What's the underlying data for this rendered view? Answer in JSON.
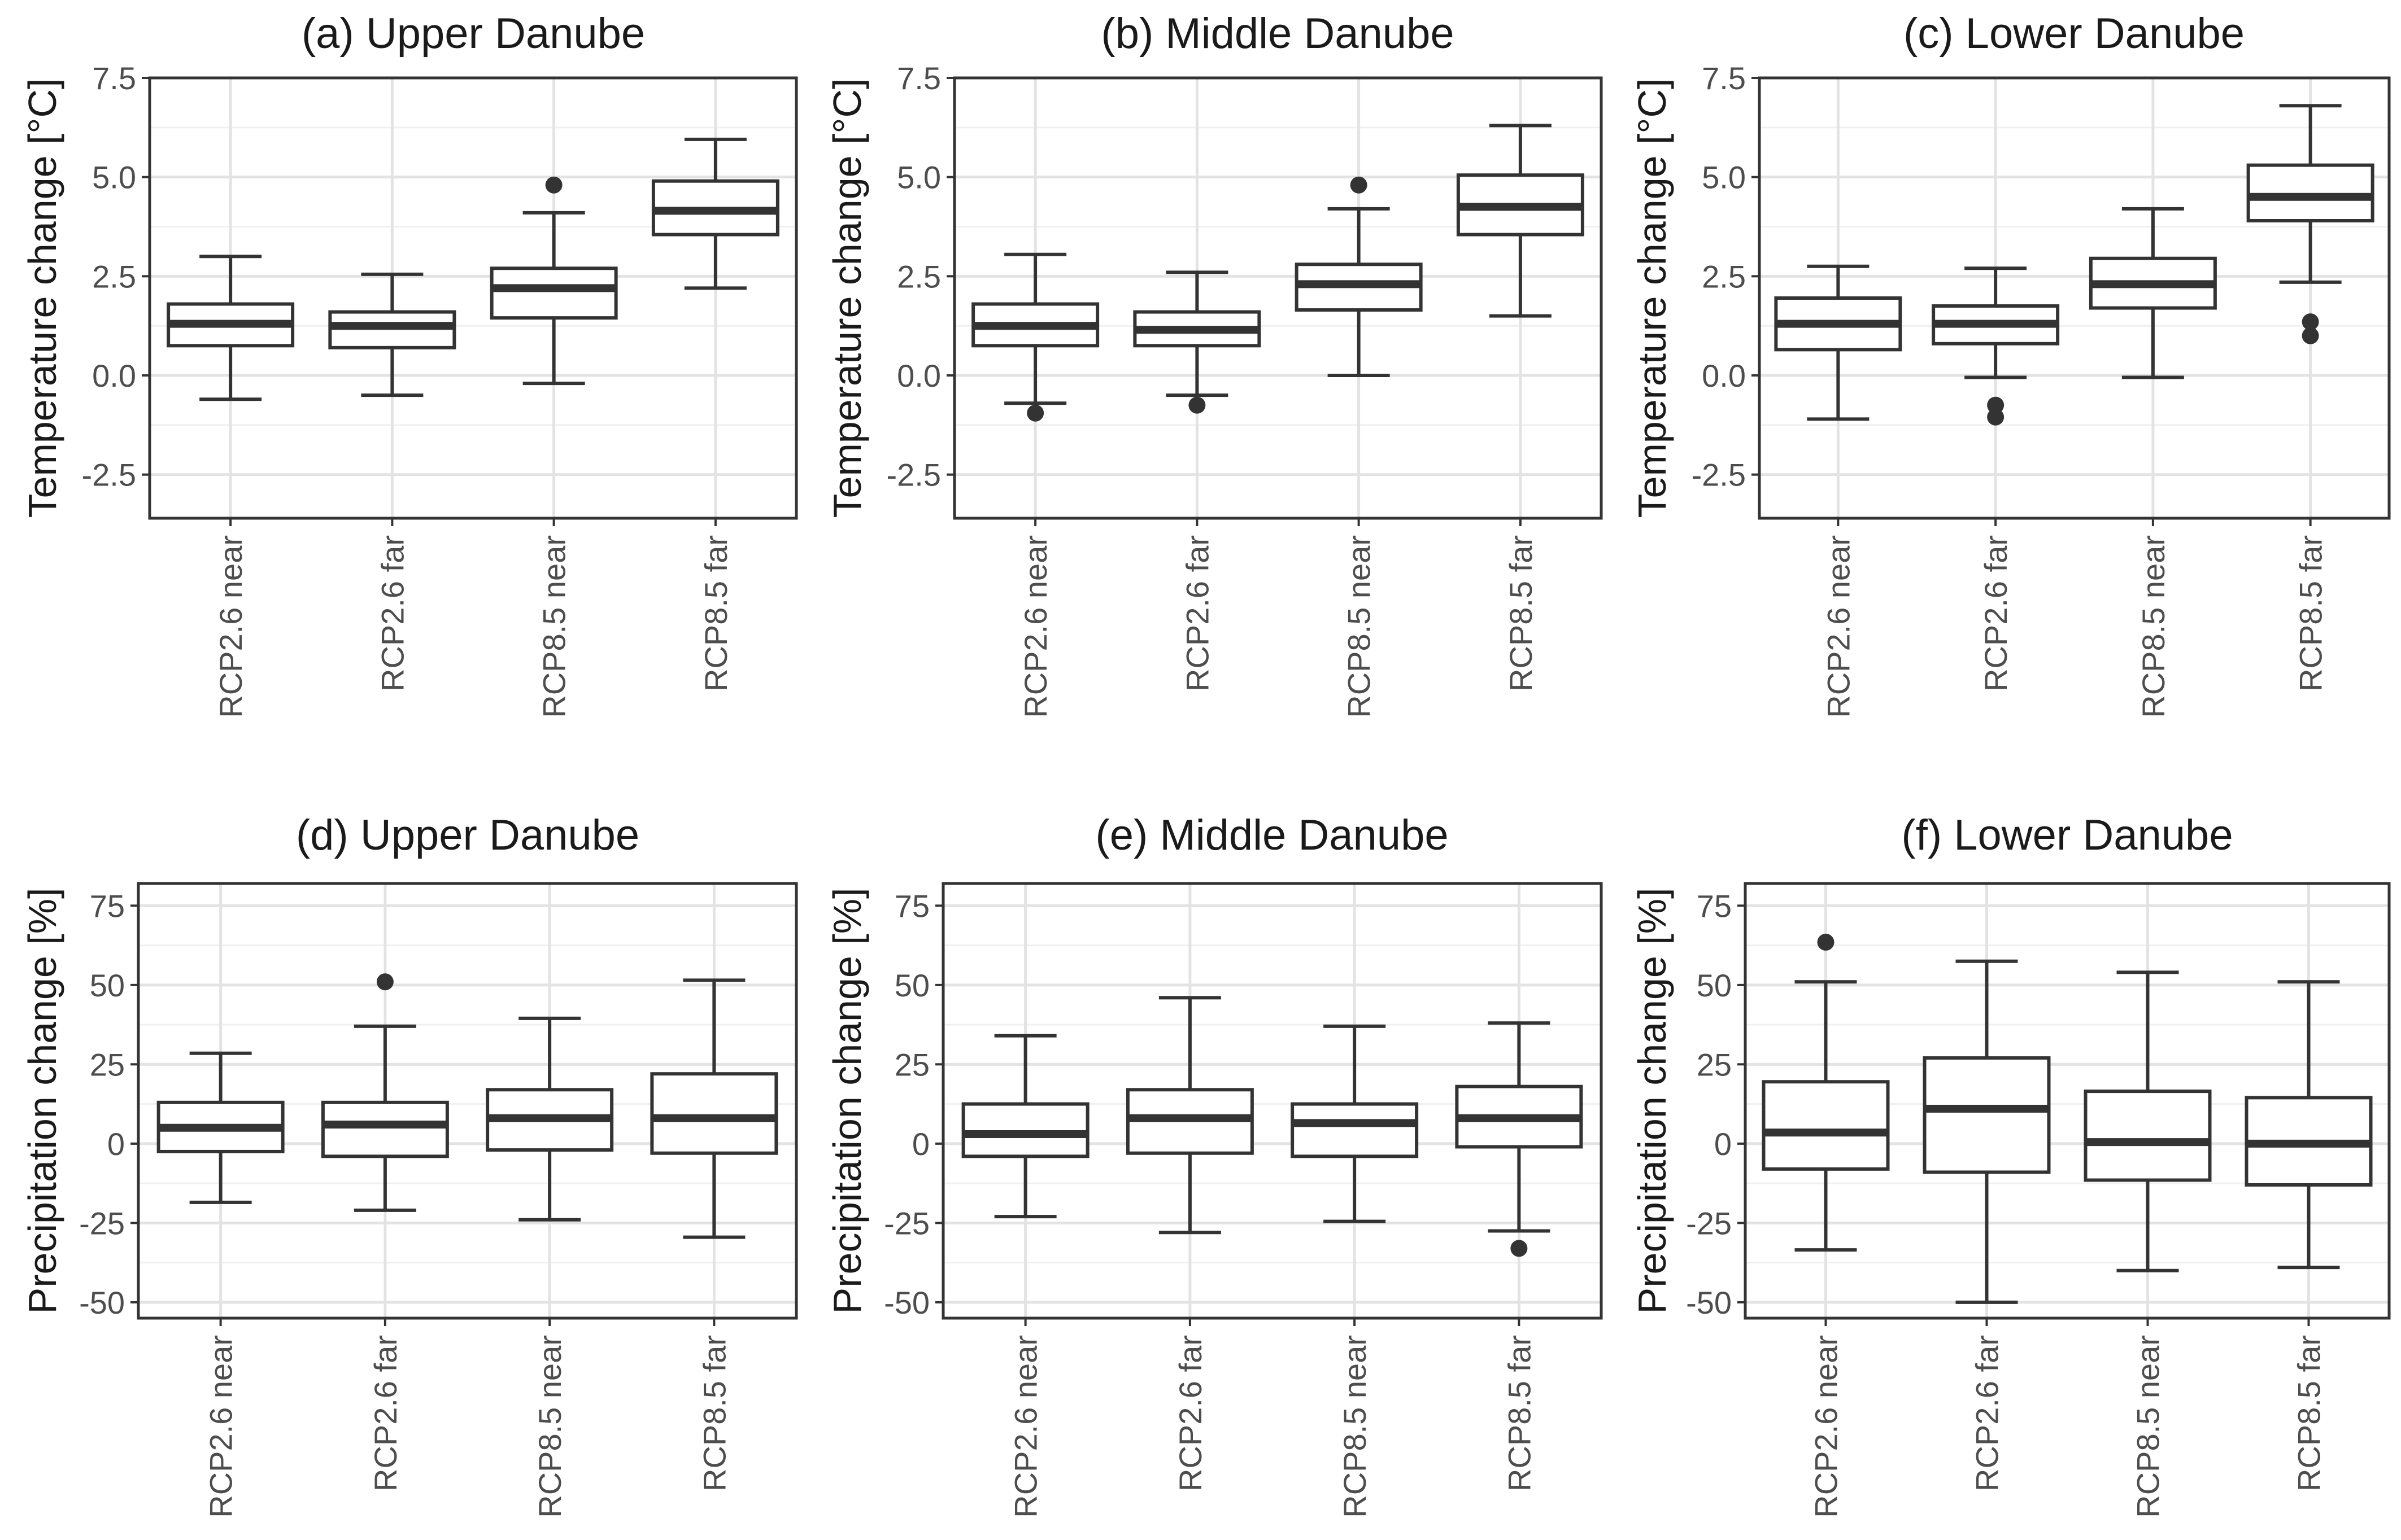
{
  "chart_data": [
    {
      "id": "a",
      "type": "box",
      "title": "(a) Upper Danube",
      "ylabel": "Temperature change [°C]",
      "ylim": [
        -3.6,
        7.5
      ],
      "yticks": [
        -2.5,
        0.0,
        2.5,
        5.0,
        7.5
      ],
      "ytick_labels": [
        "-2.5",
        "0.0",
        "2.5",
        "5.0",
        "7.5"
      ],
      "categories": [
        "RCP2.6 near",
        "RCP2.6 far",
        "RCP8.5 near",
        "RCP8.5 far"
      ],
      "boxes": [
        {
          "whisker_low": -0.6,
          "q1": 0.75,
          "median": 1.3,
          "q3": 1.8,
          "whisker_high": 3.0,
          "outliers": []
        },
        {
          "whisker_low": -0.5,
          "q1": 0.7,
          "median": 1.25,
          "q3": 1.6,
          "whisker_high": 2.55,
          "outliers": []
        },
        {
          "whisker_low": -0.2,
          "q1": 1.45,
          "median": 2.2,
          "q3": 2.7,
          "whisker_high": 4.1,
          "outliers": [
            4.8
          ]
        },
        {
          "whisker_low": 2.2,
          "q1": 3.55,
          "median": 4.15,
          "q3": 4.9,
          "whisker_high": 5.95,
          "outliers": []
        }
      ]
    },
    {
      "id": "b",
      "type": "box",
      "title": "(b) Middle Danube",
      "ylabel": "Temperature change [°C]",
      "ylim": [
        -3.6,
        7.5
      ],
      "yticks": [
        -2.5,
        0.0,
        2.5,
        5.0,
        7.5
      ],
      "ytick_labels": [
        "-2.5",
        "0.0",
        "2.5",
        "5.0",
        "7.5"
      ],
      "categories": [
        "RCP2.6 near",
        "RCP2.6 far",
        "RCP8.5 near",
        "RCP8.5 far"
      ],
      "boxes": [
        {
          "whisker_low": -0.7,
          "q1": 0.75,
          "median": 1.25,
          "q3": 1.8,
          "whisker_high": 3.05,
          "outliers": [
            -0.95
          ]
        },
        {
          "whisker_low": -0.5,
          "q1": 0.75,
          "median": 1.15,
          "q3": 1.6,
          "whisker_high": 2.6,
          "outliers": [
            -0.75
          ]
        },
        {
          "whisker_low": 0.0,
          "q1": 1.65,
          "median": 2.3,
          "q3": 2.8,
          "whisker_high": 4.2,
          "outliers": [
            4.8
          ]
        },
        {
          "whisker_low": 1.5,
          "q1": 3.55,
          "median": 4.25,
          "q3": 5.05,
          "whisker_high": 6.3,
          "outliers": []
        }
      ]
    },
    {
      "id": "c",
      "type": "box",
      "title": "(c) Lower Danube",
      "ylabel": "Temperature change [°C]",
      "ylim": [
        -3.6,
        7.5
      ],
      "yticks": [
        -2.5,
        0.0,
        2.5,
        5.0,
        7.5
      ],
      "ytick_labels": [
        "-2.5",
        "0.0",
        "2.5",
        "5.0",
        "7.5"
      ],
      "categories": [
        "RCP2.6 near",
        "RCP2.6 far",
        "RCP8.5 near",
        "RCP8.5 far"
      ],
      "boxes": [
        {
          "whisker_low": -1.1,
          "q1": 0.65,
          "median": 1.3,
          "q3": 1.95,
          "whisker_high": 2.75,
          "outliers": []
        },
        {
          "whisker_low": -0.05,
          "q1": 0.8,
          "median": 1.3,
          "q3": 1.75,
          "whisker_high": 2.7,
          "outliers": [
            -0.75,
            -1.05
          ]
        },
        {
          "whisker_low": -0.05,
          "q1": 1.7,
          "median": 2.3,
          "q3": 2.95,
          "whisker_high": 4.2,
          "outliers": []
        },
        {
          "whisker_low": 2.35,
          "q1": 3.9,
          "median": 4.5,
          "q3": 5.3,
          "whisker_high": 6.8,
          "outliers": [
            1.35,
            1.0
          ]
        }
      ]
    },
    {
      "id": "d",
      "type": "box",
      "title": "(d) Upper Danube",
      "ylabel": "Precipitation change [%]",
      "ylim": [
        -55,
        82
      ],
      "yticks": [
        -50,
        -25,
        0,
        25,
        50,
        75
      ],
      "ytick_labels": [
        "-50",
        "-25",
        "0",
        "25",
        "50",
        "75"
      ],
      "categories": [
        "RCP2.6 near",
        "RCP2.6 far",
        "RCP8.5 near",
        "RCP8.5 far"
      ],
      "boxes": [
        {
          "whisker_low": -18.5,
          "q1": -2.5,
          "median": 5,
          "q3": 13,
          "whisker_high": 28.5,
          "outliers": []
        },
        {
          "whisker_low": -21,
          "q1": -4,
          "median": 6,
          "q3": 13,
          "whisker_high": 37,
          "outliers": [
            51
          ]
        },
        {
          "whisker_low": -24,
          "q1": -2,
          "median": 8,
          "q3": 17,
          "whisker_high": 39.5,
          "outliers": []
        },
        {
          "whisker_low": -29.5,
          "q1": -3,
          "median": 8,
          "q3": 22,
          "whisker_high": 51.5,
          "outliers": []
        }
      ]
    },
    {
      "id": "e",
      "type": "box",
      "title": "(e) Middle Danube",
      "ylabel": "Precipitation change [%]",
      "ylim": [
        -55,
        82
      ],
      "yticks": [
        -50,
        -25,
        0,
        25,
        50,
        75
      ],
      "ytick_labels": [
        "-50",
        "-25",
        "0",
        "25",
        "50",
        "75"
      ],
      "categories": [
        "RCP2.6 near",
        "RCP2.6 far",
        "RCP8.5 near",
        "RCP8.5 far"
      ],
      "boxes": [
        {
          "whisker_low": -23,
          "q1": -4,
          "median": 3,
          "q3": 12.5,
          "whisker_high": 34,
          "outliers": []
        },
        {
          "whisker_low": -28,
          "q1": -3,
          "median": 8,
          "q3": 17,
          "whisker_high": 46,
          "outliers": []
        },
        {
          "whisker_low": -24.5,
          "q1": -4,
          "median": 6.5,
          "q3": 12.5,
          "whisker_high": 37,
          "outliers": []
        },
        {
          "whisker_low": -27.5,
          "q1": -1,
          "median": 8,
          "q3": 18,
          "whisker_high": 38,
          "outliers": [
            -33
          ]
        }
      ]
    },
    {
      "id": "f",
      "type": "box",
      "title": "(f) Lower Danube",
      "ylabel": "Precipitation change [%]",
      "ylim": [
        -55,
        82
      ],
      "yticks": [
        -50,
        -25,
        0,
        25,
        50,
        75
      ],
      "ytick_labels": [
        "-50",
        "-25",
        "0",
        "25",
        "50",
        "75"
      ],
      "categories": [
        "RCP2.6 near",
        "RCP2.6 far",
        "RCP8.5 near",
        "RCP8.5 far"
      ],
      "boxes": [
        {
          "whisker_low": -33.5,
          "q1": -8,
          "median": 3.5,
          "q3": 19.5,
          "whisker_high": 51,
          "outliers": [
            63.5
          ]
        },
        {
          "whisker_low": -50,
          "q1": -9,
          "median": 11,
          "q3": 27,
          "whisker_high": 57.5,
          "outliers": []
        },
        {
          "whisker_low": -40,
          "q1": -11.5,
          "median": 0.5,
          "q3": 16.5,
          "whisker_high": 54,
          "outliers": []
        },
        {
          "whisker_low": -39,
          "q1": -13,
          "median": 0,
          "q3": 14.5,
          "whisker_high": 51,
          "outliers": []
        }
      ]
    }
  ]
}
